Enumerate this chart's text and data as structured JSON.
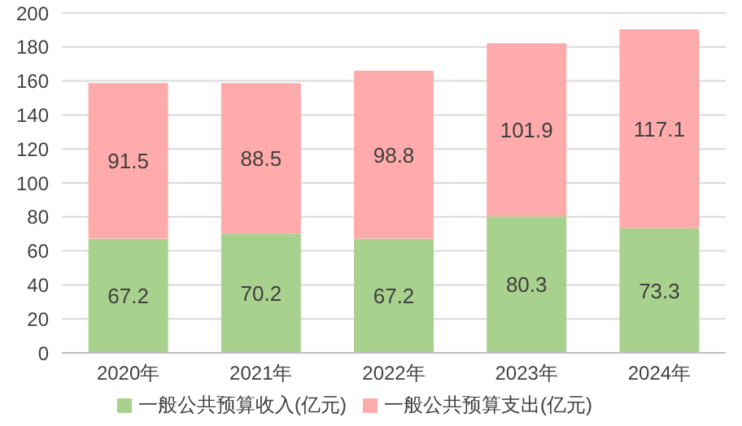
{
  "chart_data": {
    "type": "bar",
    "stacked": true,
    "categories": [
      "2020年",
      "2021年",
      "2022年",
      "2023年",
      "2024年"
    ],
    "series": [
      {
        "name": "一般公共预算收入(亿元)",
        "color": "#a9d18e",
        "values": [
          67.2,
          70.2,
          67.2,
          80.3,
          73.3
        ]
      },
      {
        "name": "一般公共预算支出(亿元)",
        "color": "#ffabab",
        "values": [
          91.5,
          88.5,
          98.8,
          101.9,
          117.1
        ]
      }
    ],
    "ylim": [
      0,
      200
    ],
    "yticks": [
      0,
      20,
      40,
      60,
      80,
      100,
      120,
      140,
      160,
      180,
      200
    ],
    "grid": "y",
    "legend": "bottom",
    "data_labels": true
  }
}
